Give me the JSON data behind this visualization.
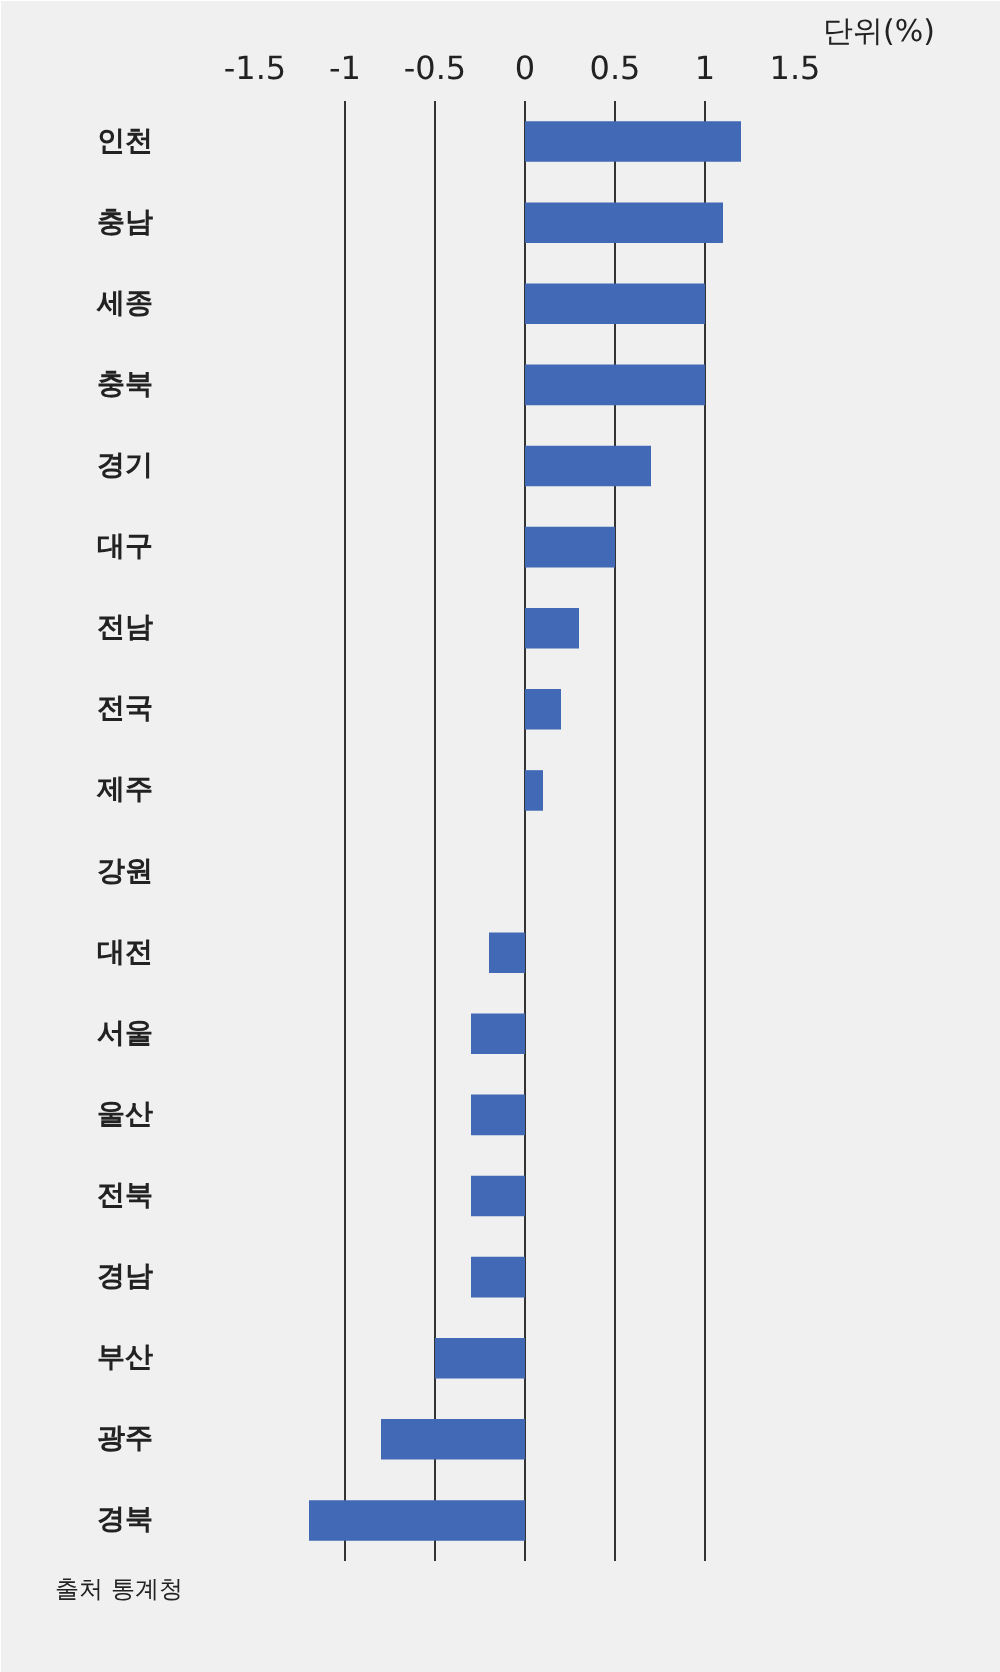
{
  "chart_data": {
    "type": "bar",
    "orientation": "horizontal",
    "xlabel": "단위(%)",
    "categories": [
      "인천",
      "충남",
      "세종",
      "충북",
      "경기",
      "대구",
      "전남",
      "전국",
      "제주",
      "강원",
      "대전",
      "서울",
      "울산",
      "전북",
      "경남",
      "부산",
      "광주",
      "경북"
    ],
    "values": [
      1.2,
      1.1,
      1.0,
      1.0,
      0.7,
      0.5,
      0.3,
      0.2,
      0.1,
      0,
      -0.2,
      -0.3,
      -0.3,
      -0.3,
      -0.3,
      -0.5,
      -0.8,
      -1.2
    ],
    "color": "#4169b5",
    "xlim": [
      -1.5,
      1.5
    ],
    "xticks": [
      -1.5,
      -1,
      -0.5,
      0,
      0.5,
      1,
      1.5
    ],
    "grid": "x",
    "annotations": [
      "출처 통계청"
    ]
  }
}
